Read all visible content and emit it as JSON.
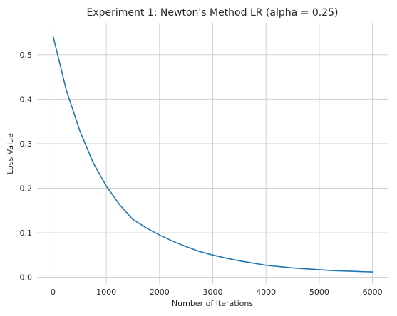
{
  "chart_data": {
    "type": "line",
    "title": "Experiment 1: Newton's Method LR (alpha = 0.25)",
    "xlabel": "Number of Iterations",
    "ylabel": "Loss Value",
    "xlim": [
      -300,
      6300
    ],
    "ylim": [
      -0.015,
      0.57
    ],
    "x_ticks": [
      0,
      1000,
      2000,
      3000,
      4000,
      5000,
      6000
    ],
    "y_ticks": [
      0.0,
      0.1,
      0.2,
      0.3,
      0.4,
      0.5
    ],
    "x_tick_labels": [
      "0",
      "1000",
      "2000",
      "3000",
      "4000",
      "5000",
      "6000"
    ],
    "y_tick_labels": [
      "0.0",
      "0.1",
      "0.2",
      "0.3",
      "0.4",
      "0.5"
    ],
    "grid": true,
    "series": [
      {
        "color": "#1f77b4",
        "x": [
          0,
          250,
          500,
          750,
          1000,
          1250,
          1500,
          1750,
          2000,
          2250,
          2500,
          2750,
          3000,
          3250,
          3500,
          3750,
          4000,
          4250,
          4500,
          4750,
          5000,
          5250,
          5500,
          5750,
          6000
        ],
        "y": [
          0.542,
          0.42,
          0.33,
          0.258,
          0.205,
          0.163,
          0.13,
          0.111,
          0.095,
          0.081,
          0.069,
          0.058,
          0.05,
          0.043,
          0.037,
          0.032,
          0.027,
          0.024,
          0.021,
          0.019,
          0.017,
          0.015,
          0.014,
          0.013,
          0.012
        ]
      }
    ]
  }
}
